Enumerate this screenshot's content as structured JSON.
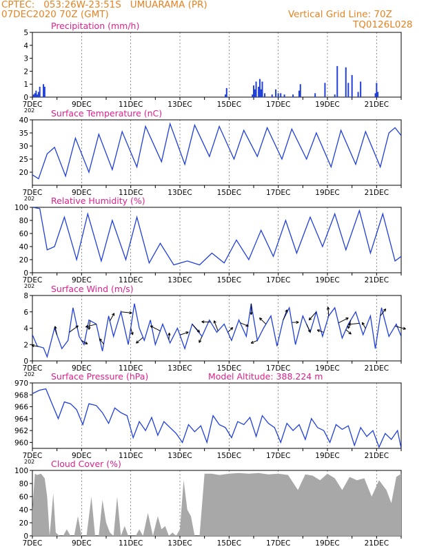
{
  "header": {
    "line1": "CPTEC:   053:26W-23:51S   UMUARAMA (PR)",
    "line2": "07DEC2020 70Z (GMT)",
    "grid_note": "Vertical Grid Line: 70Z",
    "code": "TQ0126L028"
  },
  "extra_annotation": "Model Altitude: 388.224 m",
  "colors": {
    "header": "#e8821f",
    "panel_title": "#e0208c",
    "series": "#1f3fd8",
    "cloud": "#a8a8a8",
    "text": "#000000"
  },
  "x_ticks": [
    "7DEC",
    "9DEC",
    "11DEC",
    "13DEC",
    "15DEC",
    "17DEC",
    "19DEC",
    "21DEC"
  ],
  "year_stub": "202",
  "chart_data": [
    {
      "type": "bar",
      "title": "Precipitation (mm/h)",
      "ylim": [
        0,
        5
      ],
      "yticks": [
        0,
        1,
        2,
        3,
        4,
        5
      ],
      "x_days": [
        7.05,
        7.1,
        7.15,
        7.2,
        7.25,
        7.3,
        7.45,
        7.5,
        14.85,
        14.9,
        15.95,
        16.0,
        16.05,
        16.1,
        16.2,
        16.25,
        16.3,
        16.35,
        16.45,
        16.75,
        16.9,
        17.0,
        17.1,
        17.25,
        17.6,
        17.85,
        17.9,
        18.5,
        18.9,
        19.3,
        19.4,
        19.75,
        19.85,
        20.0,
        20.25,
        20.35,
        20.95,
        21.0,
        21.05
      ],
      "values": [
        0.2,
        0.3,
        0.5,
        0.2,
        0.4,
        0.8,
        1.0,
        0.8,
        0.2,
        0.7,
        0.2,
        0.9,
        0.6,
        1.2,
        0.8,
        1.4,
        0.6,
        1.2,
        0.3,
        0.2,
        0.6,
        0.3,
        0.3,
        0.2,
        0.2,
        0.5,
        1.0,
        0.3,
        1.1,
        0.2,
        2.4,
        2.3,
        1.1,
        1.7,
        0.4,
        1.2,
        0.3,
        1.1,
        0.4
      ]
    },
    {
      "type": "line",
      "title": "Surface Temperature (nC)",
      "ylim": [
        15,
        40
      ],
      "yticks": [
        20,
        25,
        30,
        35,
        40
      ],
      "x_days": [
        7.0,
        7.25,
        7.6,
        7.9,
        8.35,
        8.75,
        9.3,
        9.7,
        10.25,
        10.65,
        11.25,
        11.6,
        12.25,
        12.6,
        13.2,
        13.6,
        14.2,
        14.6,
        15.2,
        15.6,
        16.15,
        16.55,
        17.15,
        17.55,
        18.15,
        18.55,
        19.15,
        19.55,
        20.15,
        20.55,
        21.15,
        21.5,
        21.75,
        22.0
      ],
      "values": [
        19,
        17.5,
        27,
        29.5,
        18.5,
        33,
        20,
        34.5,
        21,
        35.5,
        22,
        37.5,
        24,
        38.5,
        23,
        38,
        26,
        37.5,
        25,
        36,
        26,
        37,
        25,
        36.5,
        25,
        35,
        22,
        36,
        23,
        35.5,
        22,
        35,
        37,
        34
      ]
    },
    {
      "type": "line",
      "title": "Relative Humidity (%)",
      "ylim": [
        0,
        100
      ],
      "yticks": [
        0,
        20,
        40,
        60,
        80,
        100
      ],
      "x_days": [
        7.0,
        7.3,
        7.6,
        7.9,
        8.3,
        8.8,
        9.25,
        9.8,
        10.25,
        10.8,
        11.25,
        11.75,
        12.2,
        12.75,
        13.3,
        13.8,
        14.3,
        14.8,
        15.3,
        15.8,
        16.3,
        16.8,
        17.3,
        17.75,
        18.3,
        18.8,
        19.3,
        19.75,
        20.3,
        20.75,
        21.25,
        21.75,
        22.0
      ],
      "values": [
        100,
        98,
        35,
        40,
        85,
        20,
        90,
        18,
        80,
        20,
        85,
        15,
        45,
        12,
        18,
        12,
        30,
        15,
        50,
        20,
        65,
        25,
        80,
        30,
        85,
        40,
        90,
        35,
        95,
        30,
        90,
        18,
        25
      ]
    },
    {
      "type": "line",
      "title": "Surface Wind (m/s)",
      "ylim": [
        0,
        8
      ],
      "yticks": [
        0,
        2,
        4,
        6,
        8
      ],
      "x_days": [
        7.0,
        7.2,
        7.45,
        7.6,
        7.9,
        8.2,
        8.45,
        8.65,
        8.9,
        9.1,
        9.3,
        9.6,
        9.85,
        10.1,
        10.3,
        10.6,
        10.9,
        11.15,
        11.35,
        11.55,
        11.8,
        12.0,
        12.3,
        12.6,
        12.9,
        13.2,
        13.5,
        13.9,
        14.2,
        14.5,
        14.8,
        15.1,
        15.4,
        15.7,
        15.9,
        16.15,
        16.4,
        16.7,
        16.95,
        17.2,
        17.45,
        17.7,
        18.0,
        18.3,
        18.55,
        18.8,
        19.05,
        19.3,
        19.6,
        19.85,
        20.15,
        20.45,
        20.75,
        20.95,
        21.2,
        21.5,
        21.8,
        22.0
      ],
      "values": [
        3.2,
        1.8,
        1.6,
        0.5,
        4.0,
        1.5,
        2.5,
        6.5,
        3.0,
        2.0,
        5.0,
        4.5,
        1.2,
        5.5,
        3.0,
        6.0,
        2.0,
        7.0,
        4.0,
        2.5,
        5.0,
        2.0,
        4.5,
        2.2,
        4.0,
        1.5,
        4.5,
        3.0,
        5.0,
        3.5,
        4.5,
        2.5,
        5.0,
        3.0,
        7.0,
        2.5,
        4.0,
        5.5,
        1.8,
        5.0,
        6.5,
        2.0,
        5.5,
        3.5,
        6.0,
        3.0,
        5.5,
        6.5,
        2.8,
        4.5,
        6.0,
        3.2,
        5.5,
        1.5,
        6.5,
        3.0,
        4.5,
        3.0
      ],
      "arrows_at_days": [
        7.25,
        8.0,
        8.5,
        9.0,
        9.35,
        9.6,
        9.9,
        10.15,
        10.6,
        11.0,
        11.5,
        12.2,
        12.55,
        13.0,
        13.5,
        13.9,
        14.25,
        14.55,
        14.95,
        15.45,
        15.9,
        16.15,
        16.5,
        17.2,
        17.55,
        18.15,
        18.55,
        18.85,
        19.05,
        19.45,
        19.75,
        19.95,
        20.3,
        20.55,
        21.15,
        21.75
      ]
    },
    {
      "type": "line",
      "title": "Surface Pressure (hPa)",
      "ylim": [
        959,
        970
      ],
      "yticks": [
        960,
        962,
        964,
        966,
        968,
        970
      ],
      "x_days": [
        7.0,
        7.3,
        7.55,
        7.8,
        8.05,
        8.3,
        8.55,
        8.8,
        9.05,
        9.3,
        9.6,
        9.85,
        10.1,
        10.35,
        10.6,
        10.85,
        11.1,
        11.35,
        11.6,
        11.85,
        12.1,
        12.35,
        12.6,
        12.85,
        13.1,
        13.35,
        13.6,
        13.85,
        14.1,
        14.35,
        14.6,
        14.85,
        15.1,
        15.35,
        15.6,
        15.85,
        16.1,
        16.35,
        16.6,
        16.85,
        17.1,
        17.35,
        17.6,
        17.85,
        18.1,
        18.35,
        18.6,
        18.85,
        19.1,
        19.35,
        19.6,
        19.85,
        20.1,
        20.35,
        20.6,
        20.85,
        21.1,
        21.35,
        21.6,
        21.85,
        22.0
      ],
      "values": [
        968.2,
        968.8,
        969.0,
        966.5,
        964.0,
        966.8,
        966.5,
        965.5,
        963.0,
        966.5,
        966.2,
        965.0,
        963.2,
        965.8,
        965.0,
        964.5,
        960.8,
        963.5,
        962.0,
        964.2,
        961.2,
        963.5,
        962.5,
        961.5,
        960.0,
        963.0,
        961.8,
        962.8,
        960.0,
        964.5,
        963.0,
        962.5,
        960.8,
        963.5,
        963.0,
        964.2,
        961.0,
        964.5,
        963.2,
        962.5,
        960.0,
        963.2,
        962.0,
        963.0,
        960.5,
        964.0,
        962.5,
        962.0,
        960.0,
        963.0,
        962.2,
        962.8,
        959.5,
        962.5,
        961.0,
        962.0,
        959.2,
        961.5,
        960.5,
        962.0,
        959.0
      ],
      "annotation": "Model Altitude: 388.224 m"
    },
    {
      "type": "area",
      "title": "Cloud Cover (%)",
      "ylim": [
        0,
        100
      ],
      "yticks": [
        0,
        20,
        40,
        60,
        80,
        100
      ],
      "x_days": [
        7.0,
        7.1,
        7.2,
        7.35,
        7.5,
        7.6,
        7.7,
        7.85,
        7.95,
        8.1,
        8.25,
        8.4,
        8.55,
        8.7,
        8.85,
        9.0,
        9.2,
        9.4,
        9.55,
        9.7,
        9.85,
        10.0,
        10.15,
        10.3,
        10.45,
        10.6,
        10.75,
        10.9,
        11.05,
        11.2,
        11.35,
        11.5,
        11.7,
        11.9,
        12.1,
        12.25,
        12.4,
        12.55,
        12.7,
        12.85,
        13.0,
        13.15,
        13.3,
        13.45,
        13.6,
        13.8,
        14.0,
        14.3,
        14.6,
        15.0,
        15.4,
        15.8,
        16.2,
        16.6,
        17.0,
        17.4,
        17.8,
        18.1,
        18.4,
        18.7,
        19.0,
        19.3,
        19.6,
        19.9,
        20.2,
        20.5,
        20.8,
        21.1,
        21.4,
        21.6,
        21.8,
        22.0
      ],
      "values": [
        40,
        95,
        93,
        95,
        88,
        60,
        0,
        65,
        5,
        0,
        0,
        10,
        0,
        0,
        30,
        0,
        0,
        60,
        0,
        0,
        55,
        20,
        5,
        0,
        60,
        0,
        15,
        0,
        0,
        0,
        10,
        0,
        35,
        0,
        30,
        10,
        15,
        0,
        5,
        0,
        10,
        85,
        40,
        30,
        0,
        0,
        95,
        95,
        93,
        95,
        96,
        95,
        96,
        94,
        95,
        93,
        70,
        94,
        92,
        85,
        95,
        88,
        70,
        90,
        85,
        88,
        60,
        85,
        70,
        50,
        90,
        95
      ]
    }
  ]
}
